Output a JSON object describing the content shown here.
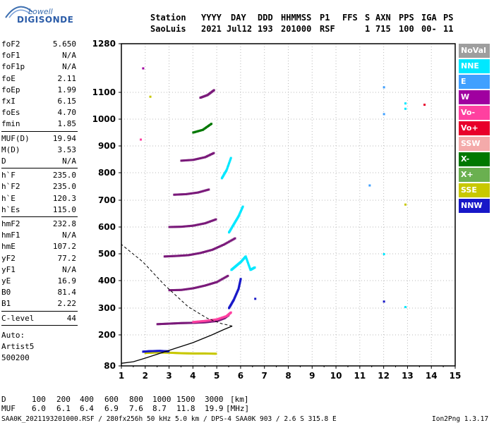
{
  "logo": {
    "line1": "Lowell",
    "line2": "DIGISONDE"
  },
  "header": {
    "labels": [
      "Station",
      "YYYY",
      "DAY",
      "DDD",
      "HHMMSS",
      "P1",
      "FFS",
      "S",
      "AXN",
      "PPS",
      "IGA",
      "PS"
    ],
    "values": [
      "SaoLuis",
      "2021",
      "Jul12",
      "193",
      "201000",
      "RSF",
      "1",
      "715",
      "100",
      "00-",
      "11"
    ]
  },
  "params": {
    "groups": [
      [
        [
          "foF2",
          "5.650"
        ],
        [
          "foF1",
          "N/A"
        ],
        [
          "foF1p",
          "N/A"
        ],
        [
          "foE",
          "2.11"
        ],
        [
          "foEp",
          "1.99"
        ],
        [
          "fxI",
          "6.15"
        ],
        [
          "foEs",
          "4.70"
        ],
        [
          "fmin",
          "1.85"
        ]
      ],
      [
        [
          "MUF(D)",
          "19.94"
        ],
        [
          "M(D)",
          "3.53"
        ],
        [
          "D",
          "N/A"
        ]
      ],
      [
        [
          "h`F",
          "235.0"
        ],
        [
          "h`F2",
          "235.0"
        ],
        [
          "h`E",
          "120.3"
        ],
        [
          "h`Es",
          "115.0"
        ]
      ],
      [
        [
          "hmF2",
          "232.8"
        ],
        [
          "hmF1",
          "N/A"
        ],
        [
          "hmE",
          "107.2"
        ],
        [
          "yF2",
          "77.2"
        ],
        [
          "yF1",
          "N/A"
        ],
        [
          "yE",
          "16.9"
        ],
        [
          "B0",
          "81.4"
        ],
        [
          "B1",
          "2.22"
        ]
      ],
      [
        [
          "C-level",
          "44"
        ]
      ]
    ],
    "auto_lines": [
      "Auto:",
      "Artist5",
      "500200"
    ]
  },
  "footer": {
    "d_label": "D",
    "d_values": [
      "100",
      "200",
      "400",
      "600",
      "800",
      "1000",
      "1500",
      "3000"
    ],
    "d_unit": "[km]",
    "muf_label": "MUF",
    "muf_values": [
      "6.0",
      "6.1",
      "6.4",
      "6.9",
      "7.6",
      "8.7",
      "11.8",
      "19.9"
    ],
    "muf_unit": "[MHz]",
    "file_line": "SAA0K_2021193201000.RSF / 280fx256h 50 kHz 5.0 km / DPS-4 SAA0K 903 / 2.6 S 315.8 E",
    "version": "Ion2Png 1.3.17"
  },
  "legend": [
    {
      "label": "NoVal",
      "color": "#9e9e9e"
    },
    {
      "label": "NNE",
      "color": "#00e8ff"
    },
    {
      "label": "E",
      "color": "#3fa0ff"
    },
    {
      "label": "W",
      "color": "#a000a0"
    },
    {
      "label": "Vo-",
      "color": "#ff40a0"
    },
    {
      "label": "Vo+",
      "color": "#e8002a"
    },
    {
      "label": "SSW",
      "color": "#f4aaaa"
    },
    {
      "label": "X-",
      "color": "#007800"
    },
    {
      "label": "X+",
      "color": "#6ab050"
    },
    {
      "label": "SSE",
      "color": "#c8c800"
    },
    {
      "label": "NNW",
      "color": "#1818c8"
    }
  ],
  "chart_data": {
    "type": "scatter",
    "x_ticks": [
      1,
      2,
      3,
      4,
      5,
      6,
      7,
      8,
      9,
      10,
      11,
      12,
      13,
      14,
      15
    ],
    "y_ticks": [
      80,
      200,
      300,
      400,
      500,
      600,
      700,
      800,
      900,
      1000,
      1100,
      1280
    ],
    "xlim": [
      1,
      15
    ],
    "ylim": [
      80,
      1280
    ],
    "grid": true,
    "legend_position": "right",
    "traces": [
      {
        "color": "#7a1a7a",
        "points": [
          [
            2.5,
            240
          ],
          [
            3,
            242
          ],
          [
            3.5,
            244
          ],
          [
            4,
            245
          ],
          [
            4.5,
            247
          ],
          [
            5,
            252
          ],
          [
            5.3,
            262
          ],
          [
            5.5,
            275
          ]
        ]
      },
      {
        "color": "#ff40a0",
        "points": [
          [
            4,
            248
          ],
          [
            4.5,
            252
          ],
          [
            5,
            258
          ],
          [
            5.4,
            270
          ],
          [
            5.6,
            285
          ]
        ]
      },
      {
        "color": "#1818c8",
        "points": [
          [
            5.5,
            300
          ],
          [
            5.7,
            330
          ],
          [
            5.9,
            370
          ],
          [
            6,
            410
          ]
        ]
      },
      {
        "color": "#7a1a7a",
        "points": [
          [
            3,
            365
          ],
          [
            3.5,
            366
          ],
          [
            4,
            372
          ],
          [
            4.5,
            382
          ],
          [
            5,
            395
          ],
          [
            5.5,
            420
          ]
        ]
      },
      {
        "color": "#7a1a7a",
        "points": [
          [
            2.8,
            490
          ],
          [
            3.3,
            492
          ],
          [
            3.8,
            495
          ],
          [
            4.3,
            503
          ],
          [
            4.8,
            515
          ],
          [
            5.3,
            535
          ],
          [
            5.8,
            560
          ]
        ]
      },
      {
        "color": "#00e8ff",
        "points": [
          [
            5.6,
            440
          ],
          [
            5.8,
            455
          ],
          [
            6,
            470
          ],
          [
            6.2,
            490
          ],
          [
            6.4,
            440
          ],
          [
            6.6,
            450
          ]
        ]
      },
      {
        "color": "#00e8ff",
        "points": [
          [
            5.5,
            580
          ],
          [
            5.7,
            610
          ],
          [
            5.9,
            640
          ],
          [
            6.1,
            680
          ]
        ]
      },
      {
        "color": "#7a1a7a",
        "points": [
          [
            3,
            600
          ],
          [
            3.5,
            601
          ],
          [
            4,
            605
          ],
          [
            4.5,
            614
          ],
          [
            5,
            630
          ]
        ]
      },
      {
        "color": "#7a1a7a",
        "points": [
          [
            3.2,
            720
          ],
          [
            3.7,
            722
          ],
          [
            4.2,
            728
          ],
          [
            4.7,
            740
          ]
        ]
      },
      {
        "color": "#00e8ff",
        "points": [
          [
            5.2,
            780
          ],
          [
            5.4,
            810
          ],
          [
            5.6,
            860
          ]
        ]
      },
      {
        "color": "#7a1a7a",
        "points": [
          [
            3.5,
            845
          ],
          [
            4,
            848
          ],
          [
            4.5,
            858
          ],
          [
            4.9,
            875
          ]
        ]
      },
      {
        "color": "#007800",
        "points": [
          [
            4,
            950
          ],
          [
            4.4,
            960
          ],
          [
            4.8,
            985
          ]
        ]
      },
      {
        "color": "#7a1a7a",
        "points": [
          [
            4.3,
            1080
          ],
          [
            4.6,
            1090
          ],
          [
            4.9,
            1110
          ]
        ]
      },
      {
        "color": "#c8c800",
        "points": [
          [
            2,
            130
          ],
          [
            2.5,
            132
          ],
          [
            3,
            131
          ],
          [
            3.5,
            129
          ],
          [
            4,
            128
          ],
          [
            4.5,
            128
          ],
          [
            5,
            127
          ]
        ]
      },
      {
        "color": "#1818c8",
        "points": [
          [
            1.9,
            135
          ],
          [
            2.2,
            137
          ],
          [
            2.6,
            138
          ],
          [
            3,
            136
          ]
        ]
      }
    ],
    "scatter_points": [
      {
        "x": 12,
        "y": 1120,
        "color": "#3fa0ff"
      },
      {
        "x": 12,
        "y": 1020,
        "color": "#3fa0ff"
      },
      {
        "x": 11.4,
        "y": 755,
        "color": "#3fa0ff"
      },
      {
        "x": 12,
        "y": 500,
        "color": "#00e8ff"
      },
      {
        "x": 12,
        "y": 325,
        "color": "#1818c8"
      },
      {
        "x": 12.9,
        "y": 1060,
        "color": "#00e8ff"
      },
      {
        "x": 12.9,
        "y": 1040,
        "color": "#00e8ff"
      },
      {
        "x": 12.9,
        "y": 305,
        "color": "#00e8ff"
      },
      {
        "x": 13.7,
        "y": 1055,
        "color": "#e8002a"
      },
      {
        "x": 12.9,
        "y": 685,
        "color": "#c8c800"
      },
      {
        "x": 2.2,
        "y": 1085,
        "color": "#c8c800"
      },
      {
        "x": 1.9,
        "y": 1190,
        "color": "#a000a0"
      },
      {
        "x": 1.8,
        "y": 925,
        "color": "#ff40a0"
      },
      {
        "x": 6.6,
        "y": 335,
        "color": "#1818c8"
      }
    ],
    "profile": [
      [
        1,
        90
      ],
      [
        1.5,
        96
      ],
      [
        2,
        110
      ],
      [
        3,
        140
      ],
      [
        4,
        170
      ],
      [
        4.8,
        200
      ],
      [
        5.3,
        220
      ],
      [
        5.65,
        232.8
      ]
    ],
    "profile_upper": [
      [
        5.65,
        232.8
      ],
      [
        5.2,
        242
      ],
      [
        4.6,
        262
      ],
      [
        3.8,
        305
      ],
      [
        2.8,
        385
      ],
      [
        1.9,
        470
      ],
      [
        1,
        535
      ]
    ]
  }
}
